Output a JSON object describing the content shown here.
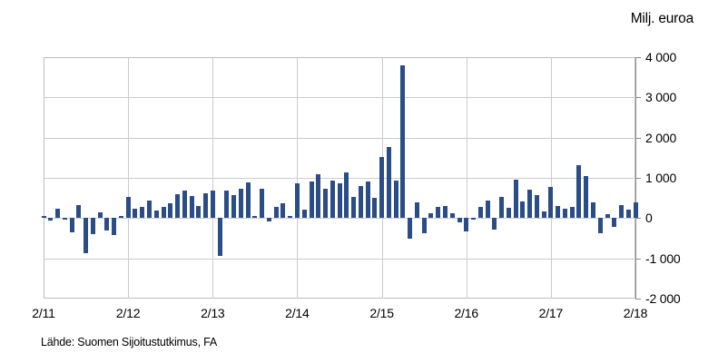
{
  "chart_data": {
    "type": "bar",
    "title": "",
    "unit_label": "Milj. euroa",
    "source": "Lähde: Suomen Sijoitustutkimus, FA",
    "x_axis": {
      "tick_labels": [
        "2/11",
        "2/12",
        "2/13",
        "2/14",
        "2/15",
        "2/16",
        "2/17",
        "2/18"
      ],
      "period": "monthly",
      "start": "2/11",
      "end": "2/18"
    },
    "y_axis": {
      "tick_labels": [
        "4 000",
        "3 000",
        "2 000",
        "1 000",
        "0",
        "-1 000",
        "-2 000"
      ],
      "min": -2000,
      "max": 4000,
      "step": 1000
    },
    "grid": true,
    "values": [
      60,
      -70,
      230,
      -45,
      -355,
      320,
      -865,
      -410,
      135,
      -320,
      -425,
      45,
      530,
      245,
      285,
      435,
      190,
      285,
      360,
      605,
      680,
      550,
      300,
      625,
      690,
      -940,
      690,
      570,
      740,
      890,
      50,
      725,
      -75,
      280,
      360,
      45,
      865,
      220,
      920,
      1090,
      730,
      935,
      860,
      1135,
      535,
      805,
      905,
      500,
      1520,
      1760,
      930,
      3800,
      -520,
      400,
      -370,
      130,
      275,
      295,
      130,
      -110,
      -330,
      -30,
      290,
      430,
      -280,
      530,
      265,
      950,
      420,
      700,
      570,
      170,
      780,
      300,
      240,
      285,
      1320,
      1050,
      390,
      -385,
      90,
      -210,
      320,
      210,
      400
    ],
    "colors": {
      "bar": "#2a4d88",
      "grid": "#cccccc",
      "plot_border": "#bdbdbd",
      "axis": "#8c8c8c",
      "text": "#000000"
    }
  }
}
